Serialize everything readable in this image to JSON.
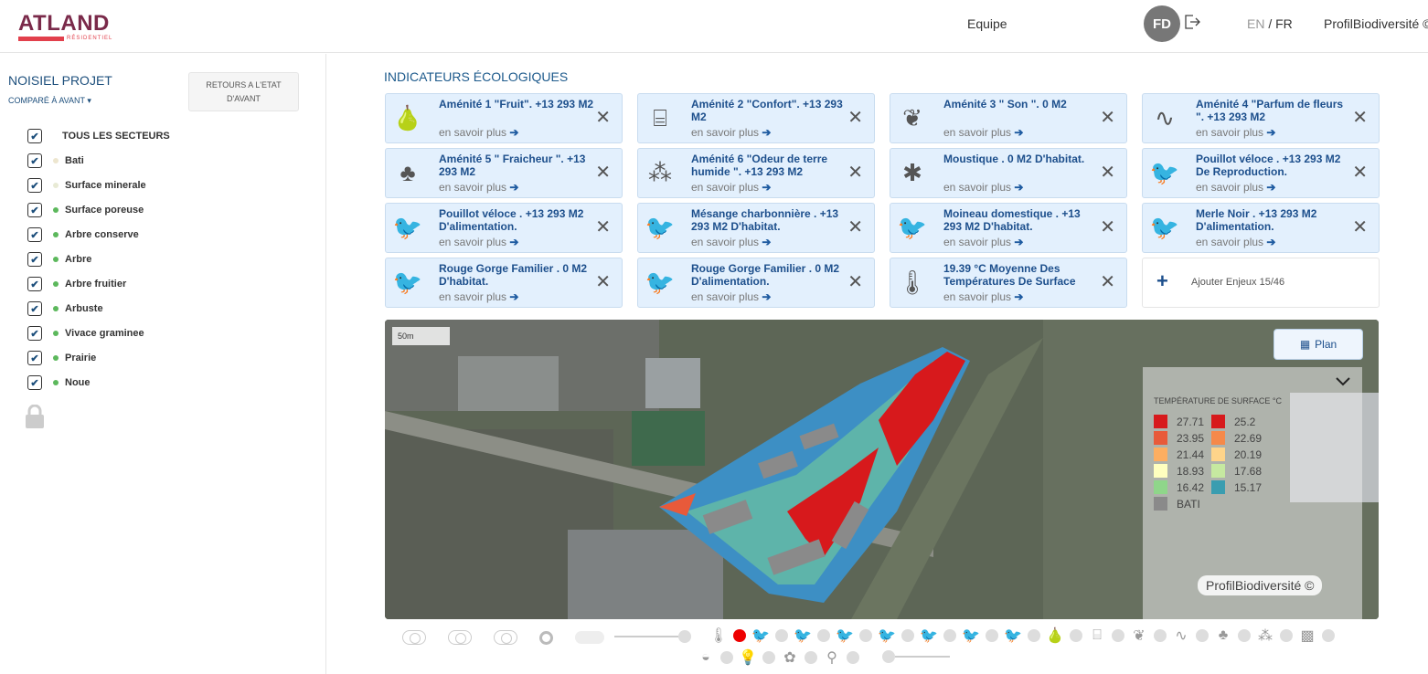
{
  "header": {
    "logo": "ATLAND",
    "logo_sub": "RÉSIDENTIEL",
    "team": "Equipe",
    "avatar": "FD",
    "lang_en": "EN",
    "lang_sep": "/",
    "lang_fr": "FR",
    "brand": "ProfilBiodiversité ©"
  },
  "sidebar": {
    "project": "NOISIEL PROJET",
    "compare": "COMPARÉ À AVANT",
    "reset": "RETOURS A L'ETAT D'AVANT",
    "sectors": [
      {
        "label": "TOUS LES SECTEURS",
        "color": ""
      },
      {
        "label": "Bati",
        "color": "#ede6cf"
      },
      {
        "label": "Surface minerale",
        "color": "#e8ead5"
      },
      {
        "label": "Surface poreuse",
        "color": "#5cb85c"
      },
      {
        "label": "Arbre conserve",
        "color": "#5cb85c"
      },
      {
        "label": "Arbre",
        "color": "#5cb85c"
      },
      {
        "label": "Arbre fruitier",
        "color": "#5cb85c"
      },
      {
        "label": "Arbuste",
        "color": "#5cb85c"
      },
      {
        "label": "Vivace graminee",
        "color": "#5cb85c"
      },
      {
        "label": "Prairie",
        "color": "#5cb85c"
      },
      {
        "label": "Noue",
        "color": "#5cb85c"
      }
    ]
  },
  "main": {
    "title": "INDICATEURS ÉCOLOGIQUES",
    "more": "en savoir plus",
    "cards": [
      {
        "label": "Aménité 1 \"Fruit\". +13 293 M2",
        "icon": "fruit-icon"
      },
      {
        "label": "Aménité 2 \"Confort\". +13 293 M2",
        "icon": "bench-icon"
      },
      {
        "label": "Aménité 3 \" Son \". 0 M2",
        "icon": "leaf-icon"
      },
      {
        "label": "Aménité 4 \"Parfum de fleurs \". +13 293 M2",
        "icon": "nose-icon"
      },
      {
        "label": "Aménité 5 \" Fraicheur \". +13 293 M2",
        "icon": "tree-icon"
      },
      {
        "label": "Aménité 6 \"Odeur de terre humide \". +13 293 M2",
        "icon": "rain-soil-icon"
      },
      {
        "label": "Moustique . 0 M2 D'habitat.",
        "icon": "mosquito-icon"
      },
      {
        "label": "Pouillot véloce . +13 293 M2 De Reproduction.",
        "icon": "bird-icon"
      },
      {
        "label": "Pouillot véloce . +13 293 M2 D'alimentation.",
        "icon": "bird-icon"
      },
      {
        "label": "Mésange charbonnière . +13 293 M2 D'habitat.",
        "icon": "bird-icon"
      },
      {
        "label": "Moineau domestique . +13 293 M2 D'habitat.",
        "icon": "bird-icon"
      },
      {
        "label": "Merle Noir . +13 293 M2 D'alimentation.",
        "icon": "bird-icon"
      },
      {
        "label": "Rouge Gorge Familier . 0 M2 D'habitat.",
        "icon": "bird-icon"
      },
      {
        "label": "Rouge Gorge Familier . 0 M2 D'alimentation.",
        "icon": "bird-icon"
      },
      {
        "label": "19.39 °C Moyenne Des Températures De Surface",
        "icon": "thermometer-sun-icon"
      }
    ],
    "add": "Ajouter Enjeux 15/46"
  },
  "map": {
    "scale": "50m",
    "plan": "Plan",
    "copyright": "ProfilBiodiversité ©",
    "legend": {
      "title": "TEMPÉRATURE DE SURFACE °C",
      "items": [
        {
          "label": "27.71",
          "color": "#d7191c"
        },
        {
          "label": "25.2",
          "color": "#d7191c"
        },
        {
          "label": "23.95",
          "color": "#e85a3a"
        },
        {
          "label": "22.69",
          "color": "#f5894a"
        },
        {
          "label": "21.44",
          "color": "#fdae61"
        },
        {
          "label": "20.19",
          "color": "#fed48a"
        },
        {
          "label": "18.93",
          "color": "#ffffbf"
        },
        {
          "label": "17.68",
          "color": "#c6e9a0"
        },
        {
          "label": "16.42",
          "color": "#8fd68a"
        },
        {
          "label": "15.17",
          "color": "#3a9db0"
        },
        {
          "label": "BATI",
          "color": "#8a8a8a"
        }
      ]
    }
  }
}
